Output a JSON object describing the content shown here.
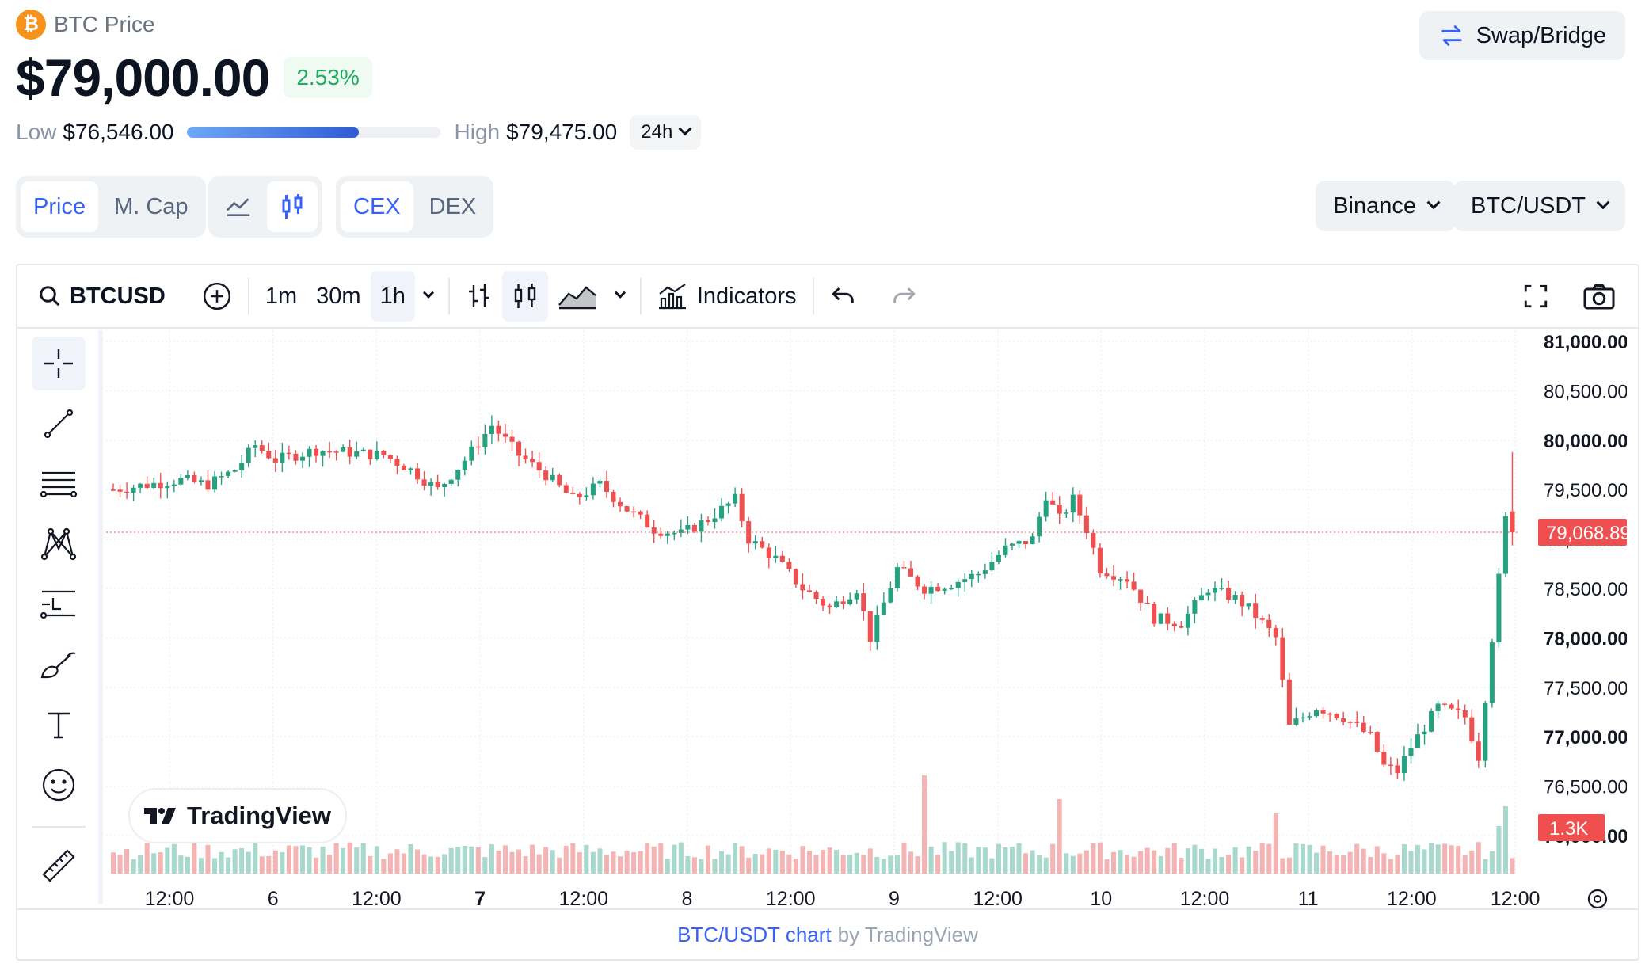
{
  "header": {
    "title": "BTC Price",
    "logo_glyph": "₿",
    "price": "$79,000.00",
    "change": "2.53%",
    "low_label": "Low",
    "low_value": "$76,546.00",
    "high_label": "High",
    "high_value": "$79,475.00",
    "range_fraction": 0.68,
    "period": "24h",
    "swap_label": "Swap/Bridge"
  },
  "toggles": {
    "price": "Price",
    "mcap": "M. Cap",
    "cex": "CEX",
    "dex": "DEX"
  },
  "selectors": {
    "exchange": "Binance",
    "pair": "BTC/USDT"
  },
  "toolbar": {
    "symbol": "BTCUSD",
    "intervals": [
      "1m",
      "30m",
      "1h"
    ],
    "indicators": "Indicators"
  },
  "chart_data": {
    "type": "candlestick",
    "pair": "BTC/USDT",
    "interval": "1h",
    "current_price": "79,068.89",
    "current_price_value": 79068.89,
    "volume_badge": "1.3K",
    "y_ticks": [
      "81,000.00",
      "80,500.00",
      "80,000.00",
      "79,500.00",
      "79,000.00",
      "78,500.00",
      "78,000.00",
      "77,500.00",
      "77,000.00",
      "76,500.00",
      "76,000.00"
    ],
    "y_bold": [
      "81,000.00",
      "80,000.00",
      "78,000.00",
      "77,000.00",
      "76,000.00"
    ],
    "ylim": [
      76000,
      81000
    ],
    "x_ticks": [
      "12:00",
      "6",
      "12:00",
      "7",
      "12:00",
      "8",
      "12:00",
      "9",
      "12:00",
      "10",
      "12:00",
      "11",
      "12:00",
      "12:00"
    ],
    "x_bold": [
      "7"
    ],
    "up_color": "#26a17f",
    "down_color": "#ef4f4f",
    "anchors": [
      [
        0,
        79500
      ],
      [
        10,
        79600
      ],
      [
        14,
        79550
      ],
      [
        18,
        79700
      ],
      [
        21,
        79950
      ],
      [
        24,
        79800
      ],
      [
        30,
        79900
      ],
      [
        40,
        79850
      ],
      [
        44,
        79700
      ],
      [
        48,
        79500
      ],
      [
        52,
        79800
      ],
      [
        56,
        80150
      ],
      [
        60,
        79850
      ],
      [
        64,
        79650
      ],
      [
        68,
        79400
      ],
      [
        72,
        79550
      ],
      [
        76,
        79300
      ],
      [
        80,
        79100
      ],
      [
        84,
        79050
      ],
      [
        88,
        79200
      ],
      [
        92,
        79400
      ],
      [
        94,
        79000
      ],
      [
        98,
        78800
      ],
      [
        102,
        78500
      ],
      [
        106,
        78300
      ],
      [
        110,
        78500
      ],
      [
        112,
        78000
      ],
      [
        116,
        78700
      ],
      [
        120,
        78500
      ],
      [
        124,
        78550
      ],
      [
        128,
        78650
      ],
      [
        132,
        78900
      ],
      [
        136,
        79000
      ],
      [
        138,
        79450
      ],
      [
        140,
        79200
      ],
      [
        142,
        79400
      ],
      [
        144,
        79100
      ],
      [
        146,
        78700
      ],
      [
        150,
        78600
      ],
      [
        154,
        78200
      ],
      [
        158,
        78150
      ],
      [
        162,
        78500
      ],
      [
        166,
        78400
      ],
      [
        168,
        78300
      ],
      [
        172,
        78000
      ],
      [
        174,
        77100
      ],
      [
        178,
        77300
      ],
      [
        182,
        77200
      ],
      [
        186,
        77000
      ],
      [
        188,
        76700
      ],
      [
        190,
        76650
      ],
      [
        192,
        76900
      ],
      [
        196,
        77300
      ],
      [
        200,
        77200
      ],
      [
        202,
        76800
      ],
      [
        204,
        78000
      ],
      [
        206,
        79200
      ],
      [
        207,
        79000
      ]
    ],
    "volume_spikes": [
      [
        120,
        0.95
      ],
      [
        140,
        0.7
      ],
      [
        172,
        0.55
      ],
      [
        205,
        0.6
      ]
    ]
  }
}
